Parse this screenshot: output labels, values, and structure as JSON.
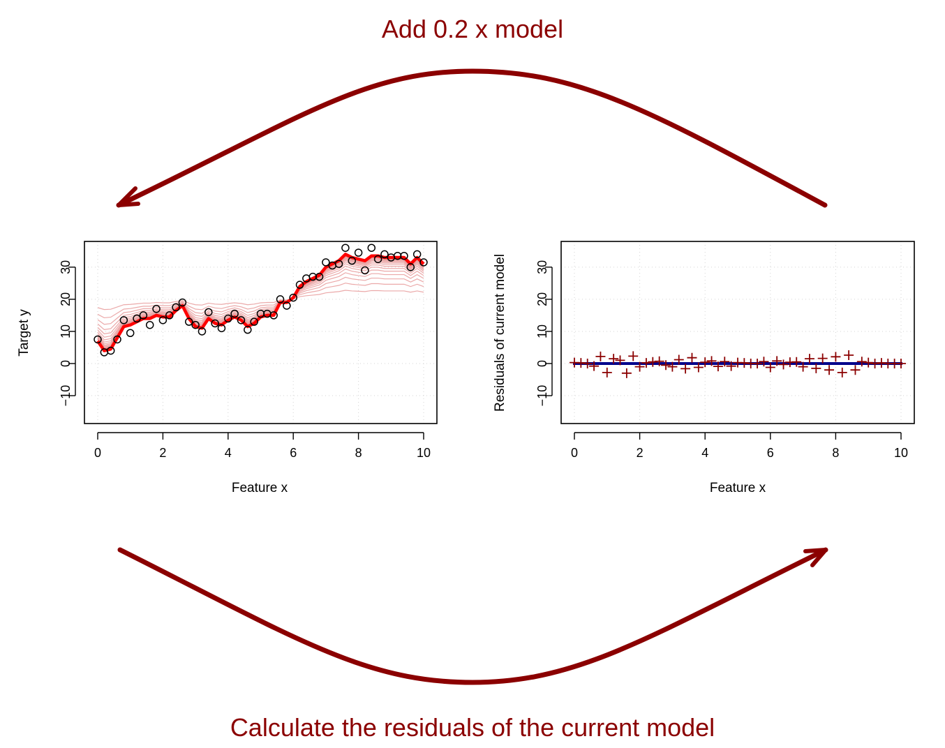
{
  "captions": {
    "top": "Add 0.2 x model",
    "bottom": "Calculate the residuals of the current model"
  },
  "colors": {
    "arrow": "#8b0000",
    "model_final": "#ff0000",
    "model_iterations": "#e79a9a",
    "residual_marker": "#8b0000",
    "residual_fit": "#00008b"
  },
  "chart_data": [
    {
      "type": "line",
      "xlabel": "Feature x",
      "ylabel": "Target y",
      "xlim": [
        0,
        10
      ],
      "ylim": [
        -18,
        38
      ],
      "x_ticks": [
        "0",
        "2",
        "4",
        "6",
        "8",
        "10"
      ],
      "y_ticks": [
        "−10",
        "0",
        "10",
        "20",
        "30"
      ],
      "grid": true,
      "points": {
        "x": [
          0.0,
          0.2,
          0.4,
          0.6,
          0.8,
          1.0,
          1.2,
          1.4,
          1.6,
          1.8,
          2.0,
          2.2,
          2.4,
          2.6,
          2.8,
          3.0,
          3.2,
          3.4,
          3.6,
          3.8,
          4.0,
          4.2,
          4.4,
          4.6,
          4.8,
          5.0,
          5.2,
          5.4,
          5.6,
          5.8,
          6.0,
          6.2,
          6.4,
          6.6,
          6.8,
          7.0,
          7.2,
          7.4,
          7.6,
          7.8,
          8.0,
          8.2,
          8.4,
          8.6,
          8.8,
          9.0,
          9.2,
          9.4,
          9.6,
          9.8,
          10.0
        ],
        "y": [
          7.5,
          3.5,
          4.0,
          7.5,
          13.5,
          9.5,
          14.0,
          15.0,
          12.0,
          17.0,
          13.5,
          15.0,
          17.5,
          19.0,
          13.0,
          12.0,
          10.0,
          16.0,
          12.5,
          11.0,
          14.0,
          15.5,
          13.5,
          10.5,
          13.0,
          15.5,
          15.5,
          15.0,
          20.0,
          18.0,
          20.5,
          24.5,
          26.5,
          27.0,
          27.0,
          31.5,
          30.5,
          31.0,
          36.0,
          32.0,
          34.5,
          29.0,
          36.0,
          32.5,
          34.0,
          33.0,
          33.5,
          33.5,
          30.0,
          34.0,
          31.5
        ]
      },
      "model": {
        "x": [
          0.0,
          0.2,
          0.4,
          0.6,
          0.8,
          1.0,
          1.2,
          1.4,
          1.6,
          1.8,
          2.0,
          2.2,
          2.4,
          2.6,
          2.8,
          3.0,
          3.2,
          3.4,
          3.6,
          3.8,
          4.0,
          4.2,
          4.4,
          4.6,
          4.8,
          5.0,
          5.2,
          5.4,
          5.6,
          5.8,
          6.0,
          6.2,
          6.4,
          6.6,
          6.8,
          7.0,
          7.2,
          7.4,
          7.6,
          7.8,
          8.0,
          8.2,
          8.4,
          8.6,
          8.8,
          9.0,
          9.2,
          9.4,
          9.6,
          9.8,
          10.0
        ],
        "y": [
          7.0,
          4.0,
          4.5,
          8.0,
          11.5,
          12.0,
          13.0,
          14.0,
          14.0,
          15.0,
          14.5,
          14.5,
          16.5,
          18.0,
          14.0,
          11.5,
          11.0,
          14.0,
          12.5,
          12.0,
          13.5,
          14.5,
          13.5,
          11.5,
          12.5,
          14.5,
          15.0,
          15.0,
          19.0,
          19.0,
          20.5,
          24.0,
          25.5,
          26.5,
          27.5,
          30.0,
          31.0,
          32.0,
          34.0,
          33.0,
          32.5,
          32.0,
          33.5,
          33.5,
          33.0,
          33.0,
          33.0,
          33.0,
          31.0,
          33.0,
          31.0
        ]
      },
      "start_level": 20,
      "iterations": 14,
      "shrinkage": 0.2
    },
    {
      "type": "scatter",
      "xlabel": "Feature x",
      "ylabel": "Residuals of current model",
      "xlim": [
        0,
        10
      ],
      "ylim": [
        -18,
        38
      ],
      "x_ticks": [
        "0",
        "2",
        "4",
        "6",
        "8",
        "10"
      ],
      "y_ticks": [
        "−10",
        "0",
        "10",
        "20",
        "30"
      ],
      "grid": true,
      "residuals": {
        "x": [
          0.0,
          0.2,
          0.4,
          0.6,
          0.8,
          1.0,
          1.2,
          1.4,
          1.6,
          1.8,
          2.0,
          2.2,
          2.4,
          2.6,
          2.8,
          3.0,
          3.2,
          3.4,
          3.6,
          3.8,
          4.0,
          4.2,
          4.4,
          4.6,
          4.8,
          5.0,
          5.2,
          5.4,
          5.6,
          5.8,
          6.0,
          6.2,
          6.4,
          6.6,
          6.8,
          7.0,
          7.2,
          7.4,
          7.6,
          7.8,
          8.0,
          8.2,
          8.4,
          8.6,
          8.8,
          9.0,
          9.2,
          9.4,
          9.6,
          9.8,
          10.0
        ],
        "y": [
          0.3,
          0.2,
          0.0,
          -0.8,
          2.2,
          -2.8,
          1.5,
          1.0,
          -3.0,
          2.3,
          -1.0,
          0.2,
          0.5,
          0.7,
          -0.5,
          -1.0,
          1.2,
          -1.6,
          1.8,
          -1.2,
          0.4,
          0.8,
          -0.9,
          0.6,
          -0.8,
          0.3,
          0.2,
          0.0,
          0.0,
          0.6,
          -1.2,
          0.8,
          -0.3,
          0.4,
          0.5,
          -1.0,
          1.5,
          -1.5,
          1.6,
          -2.0,
          2.1,
          -2.8,
          2.6,
          -2.0,
          0.6,
          0.3,
          0.0,
          0.2,
          0.0,
          0.0,
          0.0
        ]
      },
      "fit": {
        "x": [
          0.0,
          10.0
        ],
        "y": [
          0.0,
          0.0
        ]
      }
    }
  ]
}
